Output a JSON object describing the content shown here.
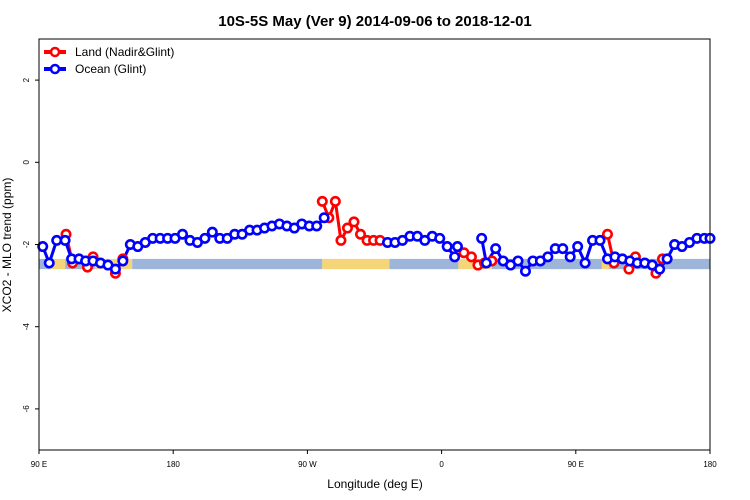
{
  "chart_data": {
    "type": "line",
    "title": "10S-5S May (Ver 9)   2014-09-06 to 2018-12-01",
    "xlabel": "Longitude (deg E)",
    "ylabel": "XCO2 - MLO trend (ppm)",
    "xlim": [
      0,
      360
    ],
    "ylim": [
      -7,
      3
    ],
    "x_tick_values": [
      0,
      72,
      144,
      216,
      288,
      360
    ],
    "x_tick_labels": [
      "90 E",
      "180",
      "90 W",
      "0",
      "90 E",
      "180"
    ],
    "y_ticks": [
      -6,
      -4,
      -2,
      0,
      2
    ],
    "grid": false,
    "legend_position": "top-left",
    "series": [
      {
        "name": "Land (Nadir&Glint)",
        "color": "#ff0000",
        "values": [
          [
            14.5,
            -1.75
          ],
          [
            18,
            -2.45
          ],
          [
            26,
            -2.55
          ],
          [
            29,
            -2.3
          ],
          [
            41,
            -2.7
          ],
          [
            45,
            -2.35
          ],
          [
            152,
            -0.95
          ],
          [
            155.5,
            -1.35
          ],
          [
            159,
            -0.95
          ],
          [
            162,
            -1.9
          ],
          [
            165.5,
            -1.6
          ],
          [
            169,
            -1.45
          ],
          [
            172.5,
            -1.75
          ],
          [
            176,
            -1.9
          ],
          [
            179.5,
            -1.9
          ],
          [
            183,
            -1.9
          ],
          [
            228,
            -2.2
          ],
          [
            232,
            -2.3
          ],
          [
            235.5,
            -2.5
          ],
          [
            239,
            -2.45
          ],
          [
            243,
            -2.4
          ],
          [
            305,
            -1.75
          ],
          [
            308.5,
            -2.45
          ],
          [
            316.5,
            -2.6
          ],
          [
            320,
            -2.3
          ],
          [
            331,
            -2.7
          ],
          [
            334.5,
            -2.35
          ]
        ]
      },
      {
        "name": "Ocean (Glint)",
        "color": "#0000ff",
        "values": [
          [
            2,
            -2.05
          ],
          [
            5.5,
            -2.45
          ],
          [
            9.5,
            -1.9
          ],
          [
            14,
            -1.9
          ],
          [
            17.5,
            -2.35
          ],
          [
            21.5,
            -2.35
          ],
          [
            25,
            -2.4
          ],
          [
            29,
            -2.4
          ],
          [
            33,
            -2.45
          ],
          [
            37,
            -2.5
          ],
          [
            41,
            -2.6
          ],
          [
            45,
            -2.4
          ],
          [
            49,
            -2.0
          ],
          [
            53,
            -2.05
          ],
          [
            57,
            -1.95
          ],
          [
            61,
            -1.85
          ],
          [
            65,
            -1.85
          ],
          [
            69,
            -1.85
          ],
          [
            73,
            -1.85
          ],
          [
            77,
            -1.75
          ],
          [
            81,
            -1.9
          ],
          [
            85,
            -1.95
          ],
          [
            89,
            -1.85
          ],
          [
            93,
            -1.7
          ],
          [
            97,
            -1.85
          ],
          [
            101,
            -1.85
          ],
          [
            105,
            -1.75
          ],
          [
            109,
            -1.75
          ],
          [
            113,
            -1.65
          ],
          [
            117,
            -1.65
          ],
          [
            121,
            -1.6
          ],
          [
            125,
            -1.55
          ],
          [
            129,
            -1.5
          ],
          [
            133,
            -1.55
          ],
          [
            137,
            -1.6
          ],
          [
            141,
            -1.5
          ],
          [
            145,
            -1.55
          ],
          [
            149,
            -1.55
          ],
          [
            153,
            -1.35
          ],
          [
            187,
            -1.95
          ],
          [
            191,
            -1.95
          ],
          [
            195,
            -1.9
          ],
          [
            199,
            -1.8
          ],
          [
            203,
            -1.8
          ],
          [
            207,
            -1.9
          ],
          [
            211,
            -1.8
          ],
          [
            215,
            -1.85
          ],
          [
            219,
            -2.05
          ],
          [
            223,
            -2.3
          ],
          [
            224.5,
            -2.05
          ],
          [
            237.5,
            -1.85
          ],
          [
            240,
            -2.45
          ],
          [
            245,
            -2.1
          ],
          [
            249,
            -2.4
          ],
          [
            253,
            -2.5
          ],
          [
            257,
            -2.4
          ],
          [
            261,
            -2.65
          ],
          [
            265,
            -2.4
          ],
          [
            269,
            -2.4
          ],
          [
            273,
            -2.3
          ],
          [
            277,
            -2.1
          ],
          [
            281,
            -2.1
          ],
          [
            285,
            -2.3
          ],
          [
            289,
            -2.05
          ],
          [
            293,
            -2.45
          ],
          [
            297,
            -1.9
          ],
          [
            301,
            -1.9
          ],
          [
            305,
            -2.35
          ],
          [
            309,
            -2.3
          ],
          [
            313,
            -2.35
          ],
          [
            317,
            -2.4
          ],
          [
            321,
            -2.45
          ],
          [
            325,
            -2.45
          ],
          [
            329,
            -2.5
          ],
          [
            333,
            -2.6
          ],
          [
            337,
            -2.35
          ],
          [
            341,
            -2.0
          ],
          [
            345,
            -2.05
          ],
          [
            349,
            -1.95
          ],
          [
            353,
            -1.85
          ],
          [
            357,
            -1.85
          ],
          [
            360,
            -1.85
          ]
        ]
      }
    ],
    "surface_band": {
      "y_range": [
        -2.6,
        -2.35
      ],
      "segments": [
        {
          "kind": "ocean",
          "x": [
            0,
            6
          ],
          "color": "#9db5d8"
        },
        {
          "kind": "land",
          "x": [
            6,
            14
          ],
          "color": "#f5d57a"
        },
        {
          "kind": "ocean",
          "x": [
            14,
            30
          ],
          "color": "#9db5d8"
        },
        {
          "kind": "land",
          "x": [
            30,
            50
          ],
          "color": "#f5d57a"
        },
        {
          "kind": "ocean",
          "x": [
            50,
            152
          ],
          "color": "#9db5d8"
        },
        {
          "kind": "land",
          "x": [
            152,
            188
          ],
          "color": "#f5d57a"
        },
        {
          "kind": "ocean",
          "x": [
            188,
            225
          ],
          "color": "#9db5d8"
        },
        {
          "kind": "land",
          "x": [
            225,
            243
          ],
          "color": "#f5d57a"
        },
        {
          "kind": "ocean",
          "x": [
            243,
            302
          ],
          "color": "#9db5d8"
        },
        {
          "kind": "land",
          "x": [
            302,
            306
          ],
          "color": "#f5d57a"
        },
        {
          "kind": "ocean",
          "x": [
            306,
            360
          ],
          "color": "#9db5d8"
        }
      ]
    }
  }
}
